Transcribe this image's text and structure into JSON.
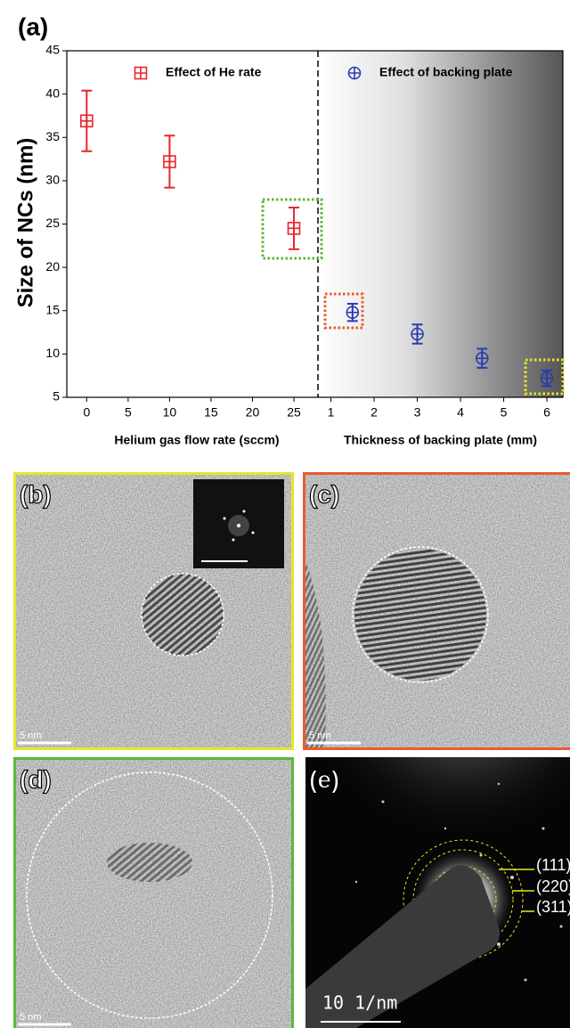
{
  "chart_data": [
    {
      "type": "scatter",
      "panel_label": "(a)",
      "ylabel": "Size of NCs (nm)",
      "xlabel": "Helium gas flow rate (sccm)",
      "x": [
        0,
        10,
        25
      ],
      "xlim": [
        -2.4,
        27.9
      ],
      "xticks": [
        0,
        5,
        10,
        15,
        20,
        25
      ],
      "ylim": [
        5,
        45
      ],
      "yticks": [
        5,
        10,
        15,
        20,
        25,
        30,
        35,
        40,
        45
      ],
      "series": [
        {
          "name": "Effect of He rate",
          "color": "#e8262b",
          "marker": "square",
          "values": [
            36.9,
            32.2,
            24.5
          ],
          "errors": [
            3.5,
            3.0,
            2.4
          ]
        }
      ]
    },
    {
      "type": "scatter",
      "xlabel": "Thickness of backing plate (mm)",
      "x": [
        1.5,
        3,
        4.5,
        6
      ],
      "xlim": [
        0.7,
        6.37
      ],
      "xticks": [
        1,
        2,
        3,
        4,
        5,
        6
      ],
      "ylim": [
        5,
        45
      ],
      "series": [
        {
          "name": "Effect of backing plate",
          "color": "#2b3bb0",
          "marker": "circle",
          "values": [
            14.8,
            12.3,
            9.5,
            7.2
          ],
          "errors": [
            1.0,
            1.1,
            1.1,
            0.9
          ]
        }
      ]
    }
  ],
  "panels": {
    "b": {
      "label": "(b)",
      "scale": "5 nm"
    },
    "c": {
      "label": "(c)",
      "scale": "5 nm"
    },
    "d": {
      "label": "(d)",
      "scale": "5 nm"
    },
    "e": {
      "label": "(e)",
      "scale": "10 1/nm",
      "rings": [
        "(111)",
        "(220)",
        "(311)"
      ]
    }
  }
}
